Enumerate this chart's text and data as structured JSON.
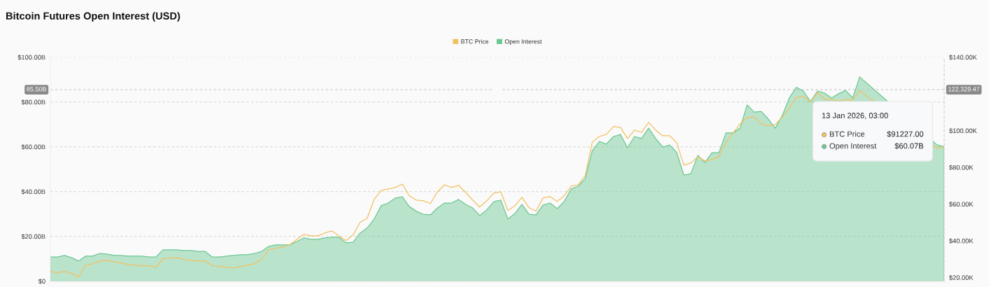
{
  "chart_data": {
    "type": "line",
    "title": "Bitcoin Futures Open Interest (USD)",
    "categories": [
      null,
      null,
      null,
      null,
      null,
      null,
      null,
      null,
      null,
      null,
      null,
      null,
      null,
      null,
      null,
      null,
      null,
      null,
      null,
      null,
      null,
      null,
      null,
      null,
      null,
      null,
      null,
      null,
      null,
      null,
      null,
      null,
      null,
      null,
      null,
      null,
      null,
      null,
      null,
      null,
      null,
      null,
      null,
      null,
      null,
      null,
      null,
      null,
      null,
      null,
      null,
      null,
      null,
      null,
      null,
      null,
      null,
      null,
      null,
      null,
      null,
      null,
      null,
      null,
      null,
      null,
      null,
      null,
      null,
      null,
      null,
      null,
      null,
      null,
      null,
      null,
      null,
      null,
      null,
      null,
      null,
      null,
      null,
      null,
      null,
      null,
      null,
      null,
      null,
      null,
      null,
      null,
      null,
      null,
      null,
      null,
      null,
      null,
      null,
      null,
      null,
      null,
      null,
      null,
      null,
      null,
      null,
      null,
      null,
      null,
      null,
      null,
      null,
      null,
      null,
      null,
      null,
      null,
      null,
      null,
      null,
      null,
      null,
      null,
      null,
      null,
      null,
      null
    ],
    "series": [
      {
        "name": "BTC Price",
        "axis": "y2",
        "color": "#f2c062",
        "values": [
          23.3,
          22.6,
          23.3,
          22.2,
          20.3,
          26.7,
          27.5,
          29.0,
          29.4,
          28.6,
          27.9,
          27.1,
          26.7,
          26.4,
          26.4,
          25.6,
          30.2,
          30.5,
          30.9,
          29.8,
          29.4,
          29.0,
          29.0,
          26.4,
          26.0,
          25.6,
          25.2,
          26.0,
          26.7,
          27.5,
          29.8,
          35.1,
          35.9,
          36.6,
          37.8,
          40.8,
          43.5,
          42.7,
          42.7,
          44.3,
          45.4,
          42.7,
          40.1,
          43.1,
          50.0,
          52.3,
          62.5,
          67.5,
          68.3,
          69.0,
          70.9,
          64.5,
          62.2,
          61.8,
          60.3,
          66.7,
          70.5,
          69.0,
          70.2,
          66.3,
          62.2,
          58.4,
          61.8,
          66.0,
          66.7,
          56.5,
          59.1,
          63.7,
          58.0,
          56.1,
          63.3,
          64.1,
          61.4,
          64.5,
          69.8,
          70.5,
          75.5,
          93.8,
          96.8,
          98.0,
          102.2,
          101.8,
          95.7,
          100.3,
          99.1,
          104.5,
          100.3,
          97.2,
          97.2,
          93.4,
          81.2,
          82.4,
          85.8,
          83.5,
          84.3,
          85.8,
          93.8,
          98.7,
          103.7,
          107.1,
          107.5,
          103.7,
          102.6,
          103.3,
          107.5,
          112.1,
          118.2,
          118.6,
          115.5,
          120.8,
          117.0,
          117.0,
          115.9,
          117.0,
          116.6,
          121.6,
          null,
          null,
          null,
          null,
          null,
          null,
          null,
          null,
          null,
          null,
          90.4,
          91.227
        ]
      },
      {
        "name": "Open Interest",
        "type": "area",
        "color": "#6cc892",
        "values": [
          10.8,
          10.8,
          11.5,
          10.5,
          9.0,
          11.2,
          11.2,
          12.4,
          12.1,
          11.5,
          11.5,
          11.2,
          11.2,
          11.2,
          10.8,
          10.8,
          14.0,
          14.0,
          14.0,
          13.7,
          13.7,
          13.3,
          13.3,
          10.8,
          10.8,
          11.2,
          11.5,
          11.8,
          11.8,
          12.4,
          13.3,
          15.5,
          16.2,
          16.2,
          16.2,
          17.7,
          19.3,
          18.7,
          18.7,
          19.3,
          19.6,
          19.6,
          17.1,
          17.4,
          21.5,
          23.7,
          27.7,
          33.7,
          34.9,
          37.1,
          37.7,
          33.3,
          31.2,
          29.9,
          29.6,
          32.7,
          34.9,
          34.9,
          36.5,
          34.3,
          32.7,
          29.3,
          31.8,
          35.5,
          36.2,
          27.7,
          30.2,
          34.3,
          29.9,
          29.6,
          34.0,
          34.9,
          32.4,
          35.5,
          41.2,
          42.4,
          45.8,
          58.3,
          62.4,
          61.2,
          64.6,
          65.5,
          59.6,
          64.6,
          63.7,
          68.3,
          63.7,
          59.9,
          60.8,
          57.4,
          47.4,
          48.0,
          56.2,
          53.0,
          57.4,
          57.4,
          66.2,
          66.2,
          68.3,
          78.7,
          75.5,
          75.8,
          72.4,
          68.3,
          74.0,
          81.8,
          86.5,
          84.9,
          80.2,
          84.9,
          84.0,
          81.8,
          83.7,
          85.2,
          81.8,
          91.2,
          null,
          null,
          null,
          null,
          null,
          null,
          null,
          null,
          null,
          null,
          60.8,
          60.07
        ]
      }
    ],
    "ylim": [
      0,
      100
    ],
    "yticks": [
      {
        "value": 0,
        "label": "$0"
      },
      {
        "value": 20,
        "label": "$20.00B"
      },
      {
        "value": 40,
        "label": "$40.00B"
      },
      {
        "value": 60,
        "label": "$60.00B"
      },
      {
        "value": 80,
        "label": "$80.00B"
      },
      {
        "value": 100,
        "label": "$100.00B"
      }
    ],
    "y2lim": [
      18,
      140
    ],
    "y2ticks": [
      {
        "value": 20,
        "label": "$20.00K"
      },
      {
        "value": 40,
        "label": "$40.00K"
      },
      {
        "value": 60,
        "label": "$60.00K"
      },
      {
        "value": 80,
        "label": "$80.00K"
      },
      {
        "value": 100,
        "label": "$100.00K"
      },
      {
        "value": 140,
        "label": "$140.00K"
      }
    ],
    "ref_lines": [
      {
        "axis": "y",
        "value": 85.5,
        "label": "85.50B",
        "color": "#cccccc",
        "line_style": "dashed"
      },
      {
        "axis": "y2",
        "value": 122.32947,
        "label": "122,329.47",
        "color": "#bdbdbd",
        "line_style": "dashed"
      }
    ],
    "annotations": [
      "13 Jan 2026, 03:00",
      "BTC Price",
      "$91227.00",
      "Open Interest",
      "$60.07B"
    ],
    "grid": "y",
    "legend": "top",
    "tick_labels": "y"
  }
}
